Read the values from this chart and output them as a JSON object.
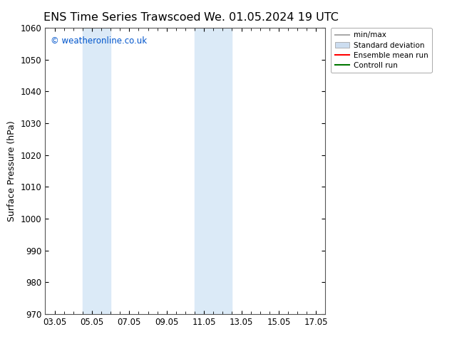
{
  "title_left": "ENS Time Series Trawscoed",
  "title_right": "We. 01.05.2024 19 UTC",
  "ylabel": "Surface Pressure (hPa)",
  "ylim": [
    970,
    1060
  ],
  "yticks": [
    970,
    980,
    990,
    1000,
    1010,
    1020,
    1030,
    1040,
    1050,
    1060
  ],
  "xtick_labels": [
    "03.05",
    "05.05",
    "07.05",
    "09.05",
    "11.05",
    "13.05",
    "15.05",
    "17.05"
  ],
  "xtick_positions": [
    0,
    2,
    4,
    6,
    8,
    10,
    12,
    14
  ],
  "shaded_bands": [
    {
      "x_start": 1.5,
      "x_end": 3.0,
      "color": "#dbeaf7"
    },
    {
      "x_start": 7.5,
      "x_end": 9.5,
      "color": "#dbeaf7"
    }
  ],
  "copyright_text": "© weatheronline.co.uk",
  "copyright_color": "#0055cc",
  "legend_entries": [
    {
      "label": "min/max",
      "color": "#aaaaaa",
      "style": "line"
    },
    {
      "label": "Standard deviation",
      "color": "#ccddf0",
      "style": "rect"
    },
    {
      "label": "Ensemble mean run",
      "color": "#ff0000",
      "style": "line"
    },
    {
      "label": "Controll run",
      "color": "#007700",
      "style": "line"
    }
  ],
  "background_color": "#ffffff",
  "grid_color": "#dddddd",
  "title_fontsize": 11.5,
  "axis_fontsize": 9,
  "tick_fontsize": 8.5,
  "legend_fontsize": 7.5
}
